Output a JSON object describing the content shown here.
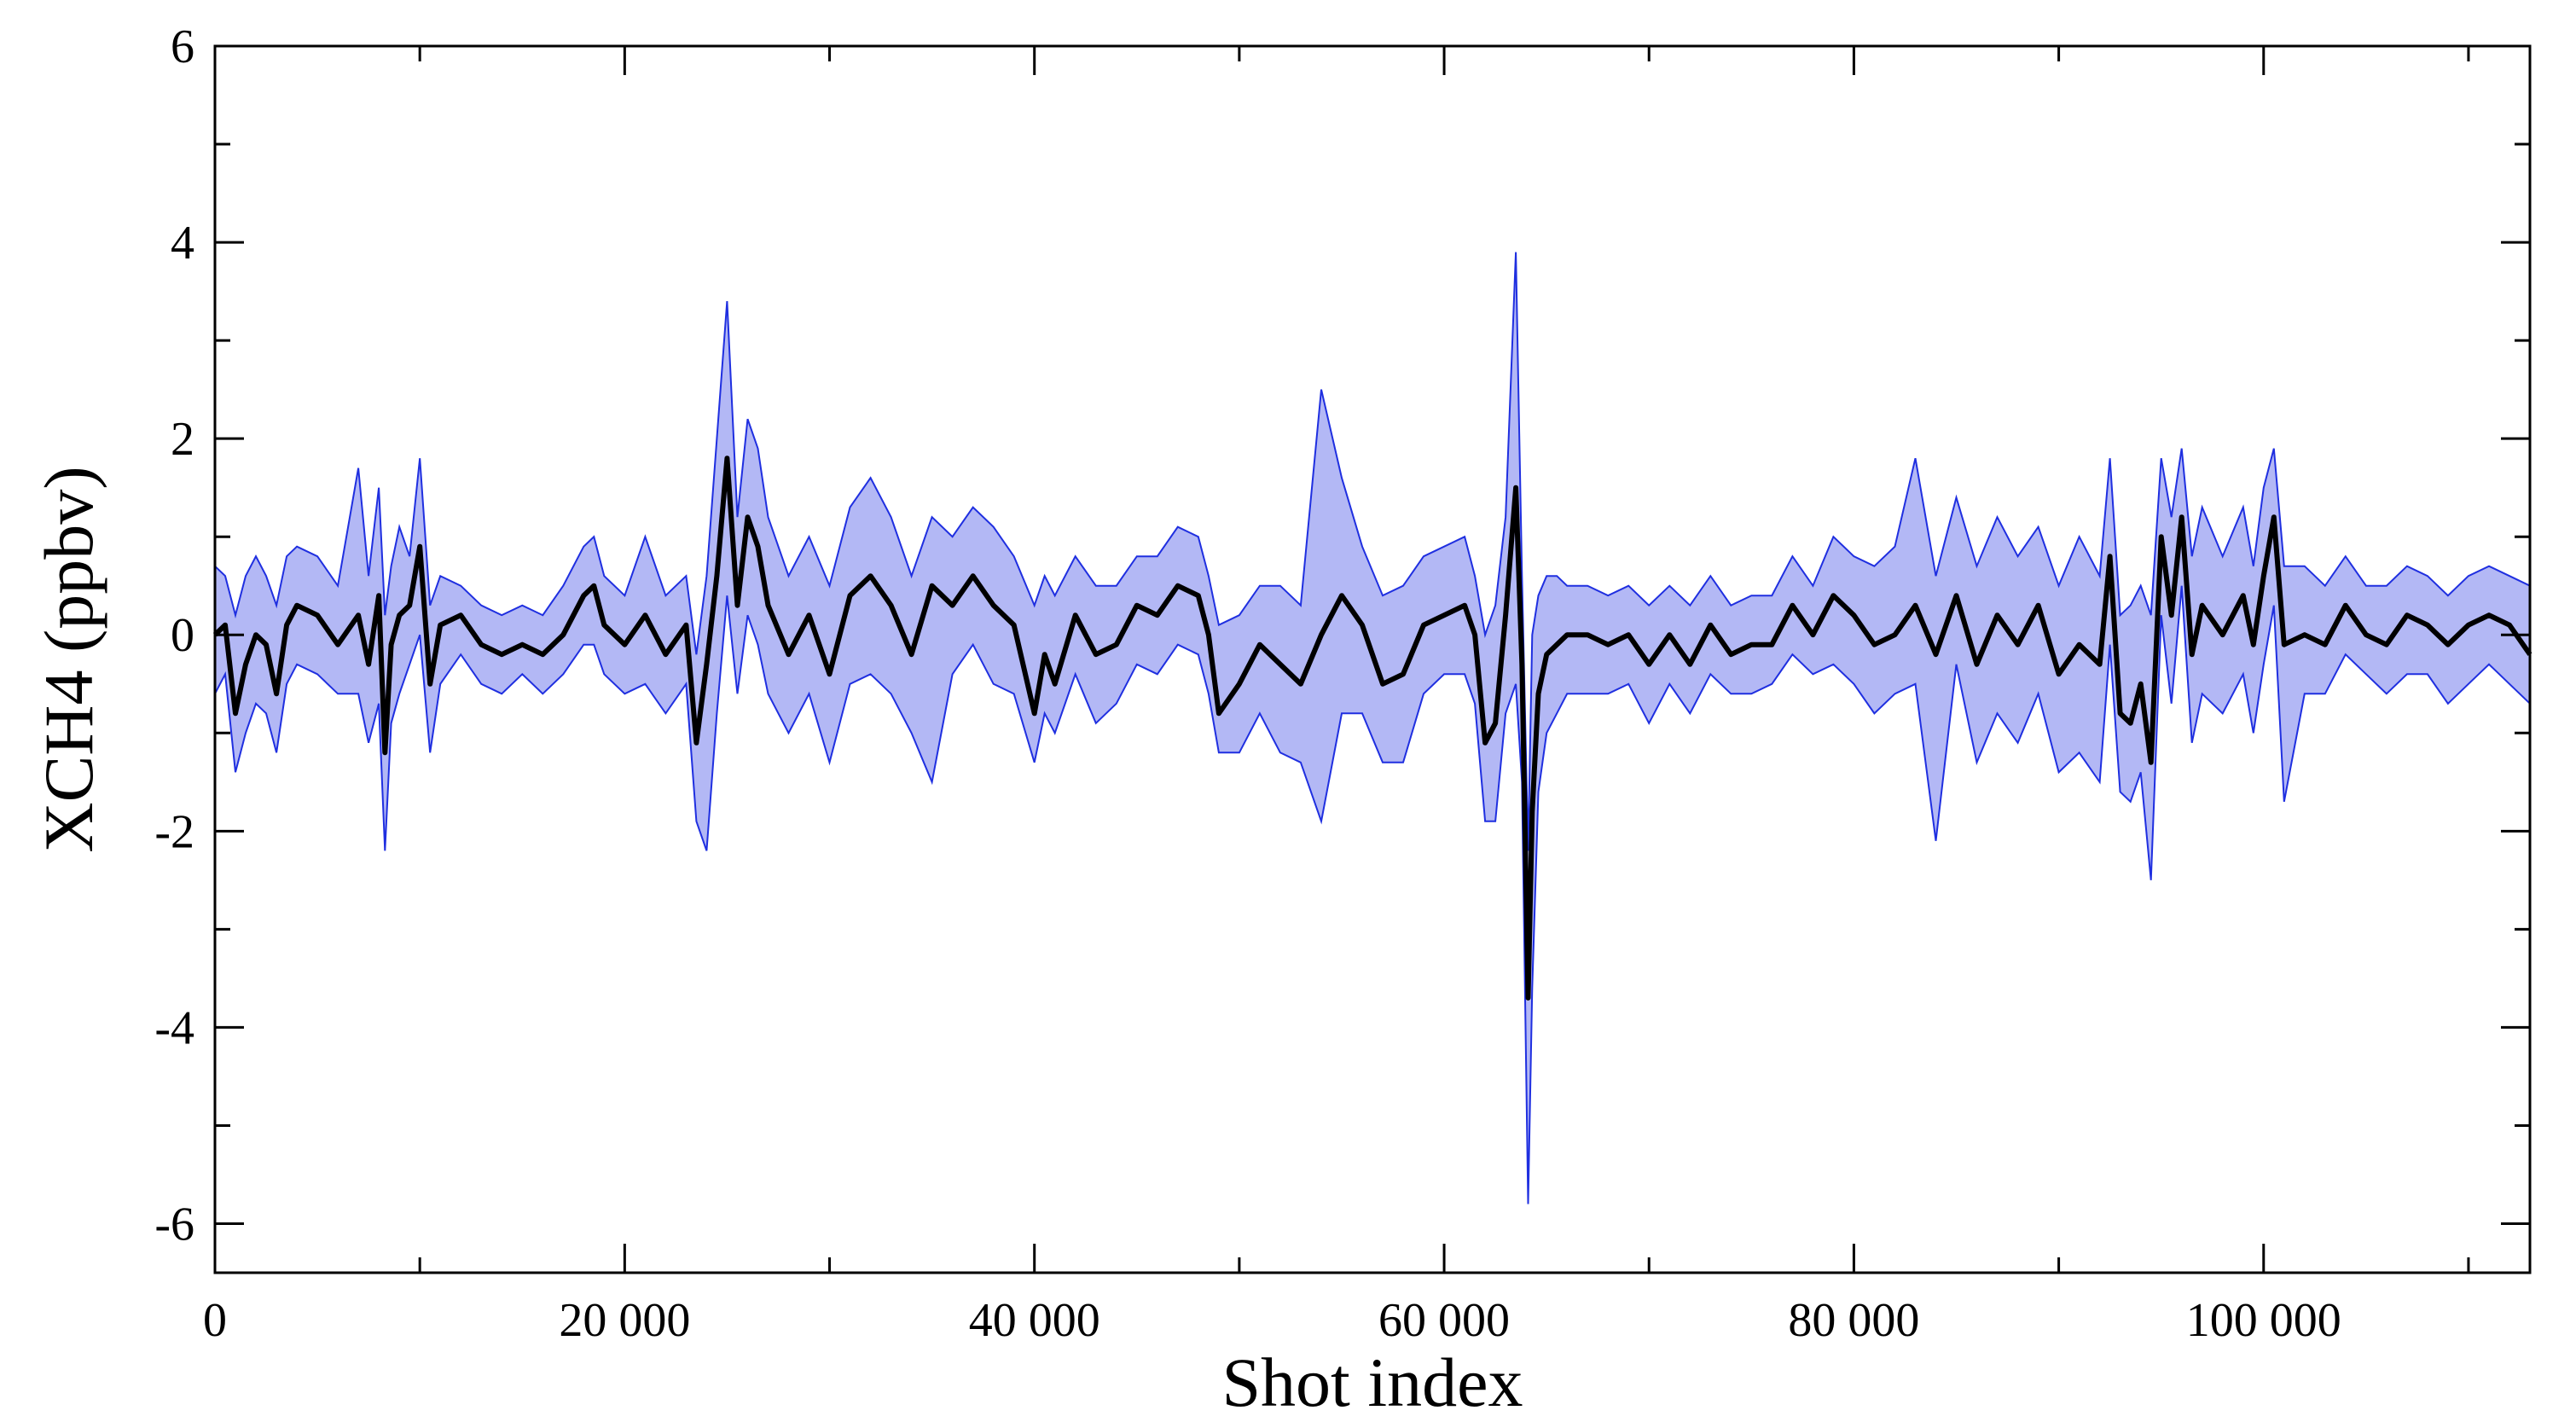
{
  "chart_data": {
    "type": "line",
    "title": "",
    "xlabel": "Shot index",
    "ylabel": "XCH4 (ppbv)",
    "xlim": [
      0,
      113000
    ],
    "ylim": [
      -6.5,
      6
    ],
    "grid": false,
    "legend": "none",
    "x_ticks": [
      {
        "value": 0,
        "label": "0"
      },
      {
        "value": 20000,
        "label": "20 000"
      },
      {
        "value": 40000,
        "label": "40 000"
      },
      {
        "value": 60000,
        "label": "60 000"
      },
      {
        "value": 80000,
        "label": "80 000"
      },
      {
        "value": 100000,
        "label": "100 000"
      }
    ],
    "x_minor_step": 10000,
    "y_ticks": [
      {
        "value": 6,
        "label": "6"
      },
      {
        "value": 4,
        "label": "4"
      },
      {
        "value": 2,
        "label": "2"
      },
      {
        "value": 0,
        "label": "0"
      },
      {
        "value": -2,
        "label": "-2"
      },
      {
        "value": -4,
        "label": "-4"
      },
      {
        "value": -6,
        "label": "-6"
      }
    ],
    "y_minor_step": 1,
    "colors": {
      "line": "#000000",
      "band_fill": "#b3b8f5",
      "band_edge": "#1f2fe0",
      "axis": "#000000"
    },
    "series": [
      {
        "role": "mean",
        "x": [
          0,
          500,
          1000,
          1500,
          2000,
          2500,
          3000,
          3500,
          4000,
          5000,
          6000,
          7000,
          7500,
          8000,
          8300,
          8600,
          9000,
          9500,
          10000,
          10500,
          11000,
          12000,
          13000,
          14000,
          15000,
          16000,
          17000,
          18000,
          18500,
          19000,
          20000,
          21000,
          22000,
          23000,
          23500,
          24000,
          24500,
          25000,
          25500,
          26000,
          26500,
          27000,
          28000,
          29000,
          30000,
          31000,
          32000,
          33000,
          34000,
          35000,
          36000,
          37000,
          38000,
          39000,
          40000,
          40500,
          41000,
          42000,
          43000,
          44000,
          45000,
          46000,
          47000,
          48000,
          48500,
          49000,
          50000,
          51000,
          52000,
          53000,
          54000,
          55000,
          56000,
          57000,
          58000,
          59000,
          60000,
          61000,
          61500,
          62000,
          62500,
          63000,
          63500,
          63800,
          64100,
          64300,
          64600,
          65000,
          65500,
          66000,
          67000,
          68000,
          69000,
          70000,
          71000,
          72000,
          73000,
          74000,
          75000,
          76000,
          77000,
          78000,
          79000,
          80000,
          81000,
          82000,
          83000,
          84000,
          85000,
          86000,
          87000,
          88000,
          89000,
          90000,
          91000,
          92000,
          92500,
          93000,
          93500,
          94000,
          94500,
          95000,
          95500,
          96000,
          96500,
          97000,
          98000,
          99000,
          99500,
          100000,
          100500,
          101000,
          102000,
          103000,
          104000,
          105000,
          106000,
          107000,
          108000,
          109000,
          110000,
          111000,
          112000,
          113000
        ],
        "y": [
          0,
          0.1,
          -0.8,
          -0.3,
          0,
          -0.1,
          -0.6,
          0.1,
          0.3,
          0.2,
          -0.1,
          0.2,
          -0.3,
          0.4,
          -1.2,
          -0.1,
          0.2,
          0.3,
          0.9,
          -0.5,
          0.1,
          0.2,
          -0.1,
          -0.2,
          -0.1,
          -0.2,
          0,
          0.4,
          0.5,
          0.1,
          -0.1,
          0.2,
          -0.2,
          0.1,
          -1.1,
          -0.3,
          0.6,
          1.8,
          0.3,
          1.2,
          0.9,
          0.3,
          -0.2,
          0.2,
          -0.4,
          0.4,
          0.6,
          0.3,
          -0.2,
          0.5,
          0.3,
          0.6,
          0.3,
          0.1,
          -0.8,
          -0.2,
          -0.5,
          0.2,
          -0.2,
          -0.1,
          0.3,
          0.2,
          0.5,
          0.4,
          0,
          -0.8,
          -0.5,
          -0.1,
          -0.3,
          -0.5,
          0,
          0.4,
          0.1,
          -0.5,
          -0.4,
          0.1,
          0.2,
          0.3,
          0,
          -1.1,
          -0.9,
          0.2,
          1.5,
          -0.3,
          -3.7,
          -1.8,
          -0.6,
          -0.2,
          -0.1,
          0,
          0,
          -0.1,
          0,
          -0.3,
          0,
          -0.3,
          0.1,
          -0.2,
          -0.1,
          -0.1,
          0.3,
          0,
          0.4,
          0.2,
          -0.1,
          0,
          0.3,
          -0.2,
          0.4,
          -0.3,
          0.2,
          -0.1,
          0.3,
          -0.4,
          -0.1,
          -0.3,
          0.8,
          -0.8,
          -0.9,
          -0.5,
          -1.3,
          1,
          0.2,
          1.2,
          -0.2,
          0.3,
          0,
          0.4,
          -0.1,
          0.6,
          1.2,
          -0.1,
          0,
          -0.1,
          0.3,
          0,
          -0.1,
          0.2,
          0.1,
          -0.1,
          0.1,
          0.2,
          0.1,
          -0.2
        ]
      },
      {
        "role": "band-upper",
        "x": [
          0,
          500,
          1000,
          1500,
          2000,
          2500,
          3000,
          3500,
          4000,
          5000,
          6000,
          7000,
          7500,
          8000,
          8300,
          8600,
          9000,
          9500,
          10000,
          10500,
          11000,
          12000,
          13000,
          14000,
          15000,
          16000,
          17000,
          18000,
          18500,
          19000,
          20000,
          21000,
          22000,
          23000,
          23500,
          24000,
          24500,
          25000,
          25500,
          26000,
          26500,
          27000,
          28000,
          29000,
          30000,
          31000,
          32000,
          33000,
          34000,
          35000,
          36000,
          37000,
          38000,
          39000,
          40000,
          40500,
          41000,
          42000,
          43000,
          44000,
          45000,
          46000,
          47000,
          48000,
          48500,
          49000,
          50000,
          51000,
          52000,
          53000,
          54000,
          55000,
          56000,
          57000,
          58000,
          59000,
          60000,
          61000,
          61500,
          62000,
          62500,
          63000,
          63500,
          63800,
          64100,
          64300,
          64600,
          65000,
          65500,
          66000,
          67000,
          68000,
          69000,
          70000,
          71000,
          72000,
          73000,
          74000,
          75000,
          76000,
          77000,
          78000,
          79000,
          80000,
          81000,
          82000,
          83000,
          84000,
          85000,
          86000,
          87000,
          88000,
          89000,
          90000,
          91000,
          92000,
          92500,
          93000,
          93500,
          94000,
          94500,
          95000,
          95500,
          96000,
          96500,
          97000,
          98000,
          99000,
          99500,
          100000,
          100500,
          101000,
          102000,
          103000,
          104000,
          105000,
          106000,
          107000,
          108000,
          109000,
          110000,
          111000,
          112000,
          113000
        ],
        "y": [
          0.7,
          0.6,
          0.2,
          0.6,
          0.8,
          0.6,
          0.3,
          0.8,
          0.9,
          0.8,
          0.5,
          1.7,
          0.6,
          1.5,
          0.2,
          0.7,
          1.1,
          0.8,
          1.8,
          0.3,
          0.6,
          0.5,
          0.3,
          0.2,
          0.3,
          0.2,
          0.5,
          0.9,
          1.0,
          0.6,
          0.4,
          1.0,
          0.4,
          0.6,
          -0.2,
          0.6,
          2.0,
          3.4,
          1.2,
          2.2,
          1.9,
          1.2,
          0.6,
          1.0,
          0.5,
          1.3,
          1.6,
          1.2,
          0.6,
          1.2,
          1.0,
          1.3,
          1.1,
          0.8,
          0.3,
          0.6,
          0.4,
          0.8,
          0.5,
          0.5,
          0.8,
          0.8,
          1.1,
          1.0,
          0.6,
          0.1,
          0.2,
          0.5,
          0.5,
          0.3,
          2.5,
          1.6,
          0.9,
          0.4,
          0.5,
          0.8,
          0.9,
          1.0,
          0.6,
          0,
          0.3,
          1.2,
          3.9,
          0.6,
          -2.2,
          0,
          0.4,
          0.6,
          0.6,
          0.5,
          0.5,
          0.4,
          0.5,
          0.3,
          0.5,
          0.3,
          0.6,
          0.3,
          0.4,
          0.4,
          0.8,
          0.5,
          1.0,
          0.8,
          0.7,
          0.9,
          1.8,
          0.6,
          1.4,
          0.7,
          1.2,
          0.8,
          1.1,
          0.5,
          1.0,
          0.6,
          1.8,
          0.2,
          0.3,
          0.5,
          0.2,
          1.8,
          1.2,
          1.9,
          0.8,
          1.3,
          0.8,
          1.3,
          0.7,
          1.5,
          1.9,
          0.7,
          0.7,
          0.5,
          0.8,
          0.5,
          0.5,
          0.7,
          0.6,
          0.4,
          0.6,
          0.7,
          0.6,
          0.5
        ]
      },
      {
        "role": "band-lower",
        "x": [
          0,
          500,
          1000,
          1500,
          2000,
          2500,
          3000,
          3500,
          4000,
          5000,
          6000,
          7000,
          7500,
          8000,
          8300,
          8600,
          9000,
          9500,
          10000,
          10500,
          11000,
          12000,
          13000,
          14000,
          15000,
          16000,
          17000,
          18000,
          18500,
          19000,
          20000,
          21000,
          22000,
          23000,
          23500,
          24000,
          24500,
          25000,
          25500,
          26000,
          26500,
          27000,
          28000,
          29000,
          30000,
          31000,
          32000,
          33000,
          34000,
          35000,
          36000,
          37000,
          38000,
          39000,
          40000,
          40500,
          41000,
          42000,
          43000,
          44000,
          45000,
          46000,
          47000,
          48000,
          48500,
          49000,
          50000,
          51000,
          52000,
          53000,
          54000,
          55000,
          56000,
          57000,
          58000,
          59000,
          60000,
          61000,
          61500,
          62000,
          62500,
          63000,
          63500,
          63800,
          64100,
          64300,
          64600,
          65000,
          65500,
          66000,
          67000,
          68000,
          69000,
          70000,
          71000,
          72000,
          73000,
          74000,
          75000,
          76000,
          77000,
          78000,
          79000,
          80000,
          81000,
          82000,
          83000,
          84000,
          85000,
          86000,
          87000,
          88000,
          89000,
          90000,
          91000,
          92000,
          92500,
          93000,
          93500,
          94000,
          94500,
          95000,
          95500,
          96000,
          96500,
          97000,
          98000,
          99000,
          99500,
          100000,
          100500,
          101000,
          102000,
          103000,
          104000,
          105000,
          106000,
          107000,
          108000,
          109000,
          110000,
          111000,
          112000,
          113000
        ],
        "y": [
          -0.6,
          -0.4,
          -1.4,
          -1.0,
          -0.7,
          -0.8,
          -1.2,
          -0.5,
          -0.3,
          -0.4,
          -0.6,
          -0.6,
          -1.1,
          -0.7,
          -2.2,
          -0.9,
          -0.6,
          -0.3,
          0,
          -1.2,
          -0.5,
          -0.2,
          -0.5,
          -0.6,
          -0.4,
          -0.6,
          -0.4,
          -0.1,
          -0.1,
          -0.4,
          -0.6,
          -0.5,
          -0.8,
          -0.5,
          -1.9,
          -2.2,
          -0.8,
          0.4,
          -0.6,
          0.2,
          -0.1,
          -0.6,
          -1.0,
          -0.6,
          -1.3,
          -0.5,
          -0.4,
          -0.6,
          -1.0,
          -1.5,
          -0.4,
          -0.1,
          -0.5,
          -0.6,
          -1.3,
          -0.8,
          -1.0,
          -0.4,
          -0.9,
          -0.7,
          -0.3,
          -0.4,
          -0.1,
          -0.2,
          -0.6,
          -1.2,
          -1.2,
          -0.8,
          -1.2,
          -1.3,
          -1.9,
          -0.8,
          -0.8,
          -1.3,
          -1.3,
          -0.6,
          -0.4,
          -0.4,
          -0.7,
          -1.9,
          -1.9,
          -0.8,
          -0.5,
          -1.5,
          -5.8,
          -3.6,
          -1.6,
          -1.0,
          -0.8,
          -0.6,
          -0.6,
          -0.6,
          -0.5,
          -0.9,
          -0.5,
          -0.8,
          -0.4,
          -0.6,
          -0.6,
          -0.5,
          -0.2,
          -0.4,
          -0.3,
          -0.5,
          -0.8,
          -0.6,
          -0.5,
          -2.1,
          -0.3,
          -1.3,
          -0.8,
          -1.1,
          -0.6,
          -1.4,
          -1.2,
          -1.5,
          -0.1,
          -1.6,
          -1.7,
          -1.4,
          -2.5,
          0.2,
          -0.7,
          0.5,
          -1.1,
          -0.6,
          -0.8,
          -0.4,
          -1.0,
          -0.3,
          0.3,
          -1.7,
          -0.6,
          -0.6,
          -0.2,
          -0.4,
          -0.6,
          -0.4,
          -0.4,
          -0.7,
          -0.5,
          -0.3,
          -0.5,
          -0.7
        ]
      }
    ]
  }
}
